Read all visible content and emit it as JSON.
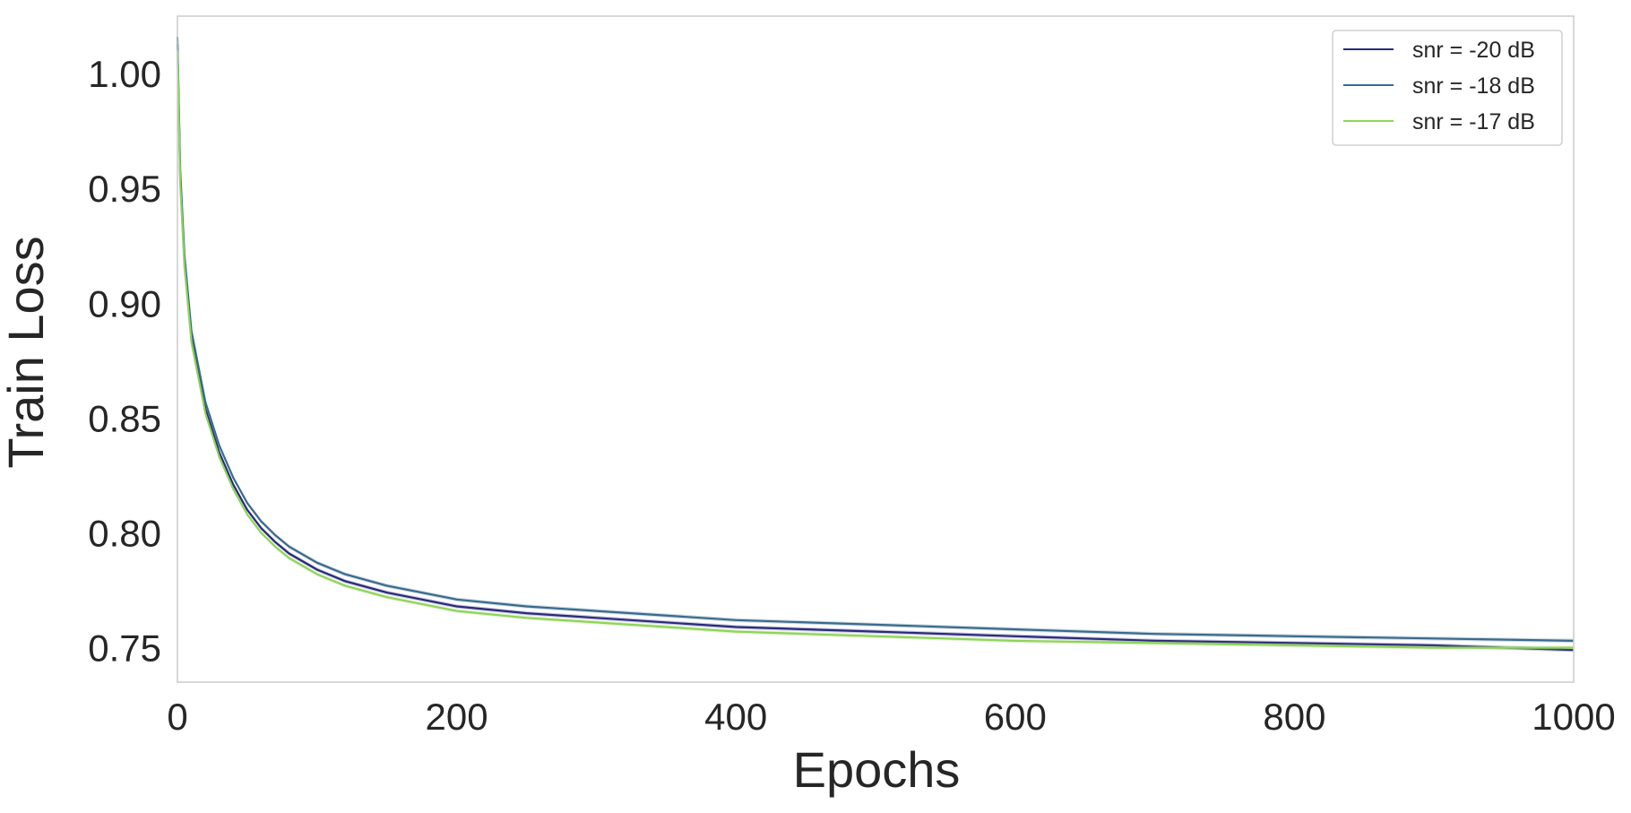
{
  "chart_data": {
    "type": "line",
    "xlabel": "Epochs",
    "ylabel": "Train Loss",
    "xlim": [
      0,
      1000
    ],
    "ylim": [
      0.735,
      1.025
    ],
    "xticks": [
      0,
      200,
      400,
      600,
      800,
      1000
    ],
    "xtick_labels": [
      "0",
      "200",
      "400",
      "600",
      "800",
      "1000"
    ],
    "yticks": [
      0.75,
      0.8,
      0.85,
      0.9,
      0.95,
      1.0
    ],
    "ytick_labels": [
      "0.75",
      "0.80",
      "0.85",
      "0.90",
      "0.95",
      "1.00"
    ],
    "grid": false,
    "legend_position": "top-right",
    "x": [
      0,
      2,
      5,
      10,
      20,
      30,
      40,
      50,
      60,
      70,
      80,
      100,
      120,
      150,
      200,
      250,
      300,
      400,
      500,
      600,
      700,
      800,
      900,
      1000
    ],
    "series": [
      {
        "name": "snr = -20 dB",
        "color": "#2a2a7a",
        "values": [
          1.013,
          0.955,
          0.918,
          0.885,
          0.854,
          0.835,
          0.821,
          0.81,
          0.802,
          0.796,
          0.791,
          0.784,
          0.779,
          0.774,
          0.768,
          0.765,
          0.763,
          0.759,
          0.757,
          0.755,
          0.753,
          0.752,
          0.751,
          0.749
        ]
      },
      {
        "name": "snr = -18 dB",
        "color": "#3a6a8c",
        "values": [
          1.016,
          0.958,
          0.921,
          0.888,
          0.857,
          0.838,
          0.824,
          0.813,
          0.805,
          0.799,
          0.794,
          0.787,
          0.782,
          0.777,
          0.771,
          0.768,
          0.766,
          0.762,
          0.76,
          0.758,
          0.756,
          0.755,
          0.754,
          0.753
        ]
      },
      {
        "name": "snr = -17 dB",
        "color": "#8fd45a",
        "values": [
          1.01,
          0.952,
          0.916,
          0.883,
          0.852,
          0.833,
          0.819,
          0.808,
          0.8,
          0.794,
          0.789,
          0.782,
          0.777,
          0.772,
          0.766,
          0.763,
          0.761,
          0.757,
          0.755,
          0.753,
          0.752,
          0.751,
          0.75,
          0.75
        ]
      }
    ]
  }
}
